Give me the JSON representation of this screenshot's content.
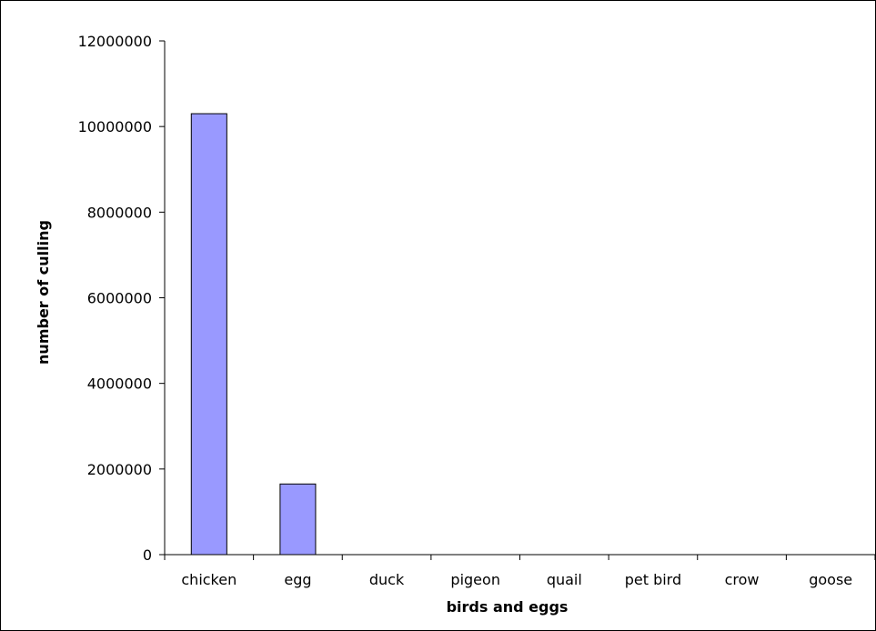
{
  "chart_data": {
    "type": "bar",
    "title": "",
    "xlabel": "birds and eggs",
    "ylabel": "number of culling",
    "categories": [
      "chicken",
      "egg",
      "duck",
      "pigeon",
      "quail",
      "pet bird",
      "crow",
      "goose"
    ],
    "values": [
      10300000,
      1650000,
      0,
      0,
      0,
      0,
      0,
      0
    ],
    "ylim": [
      0,
      12000000
    ],
    "yticks": [
      "0",
      "2000000",
      "4000000",
      "6000000",
      "8000000",
      "10000000",
      "12000000"
    ],
    "grid": false,
    "legend": "none",
    "colors": {
      "bar_fill": "#9999ff",
      "bar_stroke": "#000000",
      "axis": "#000000",
      "background": "#ffffff"
    }
  }
}
